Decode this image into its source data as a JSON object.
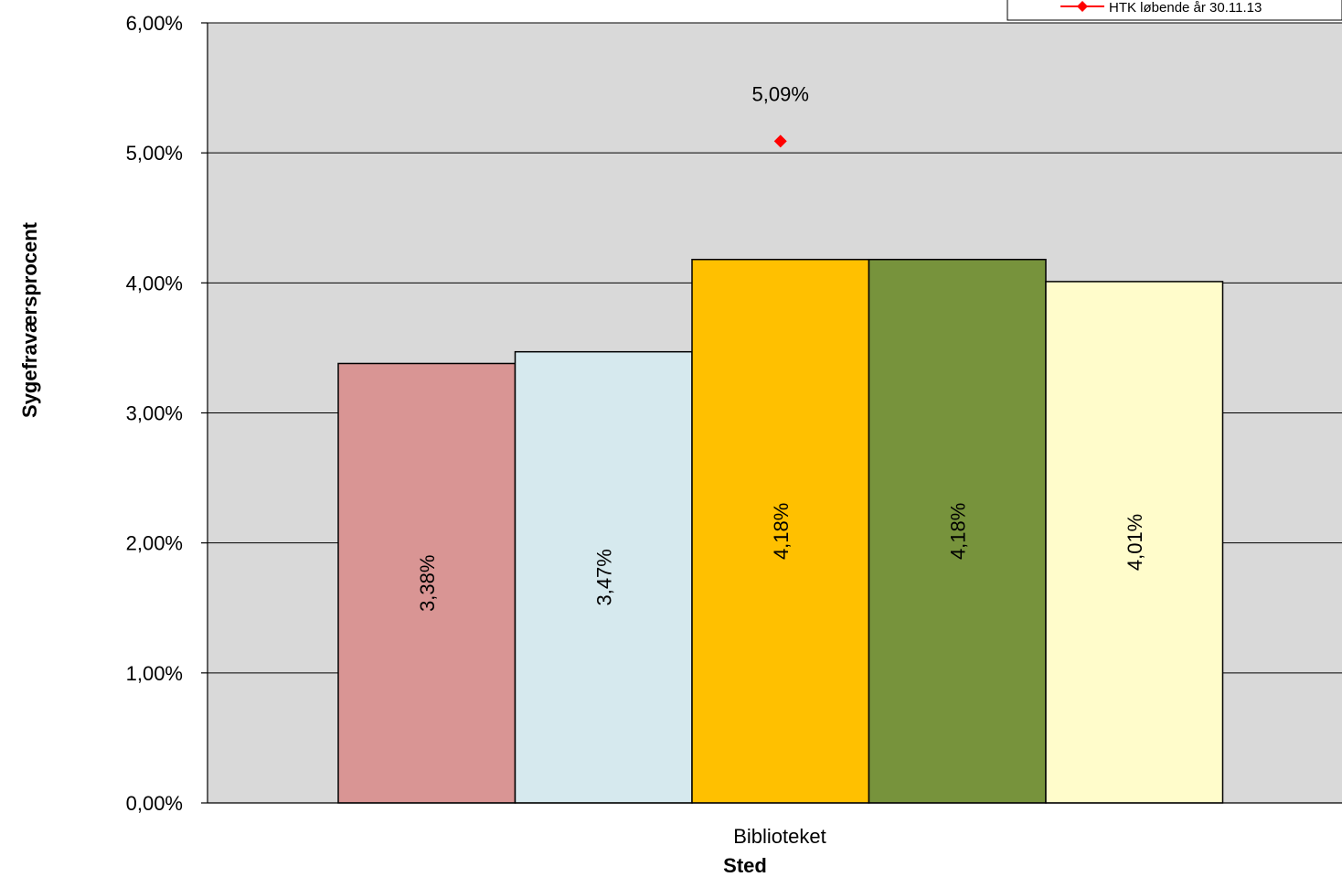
{
  "chart_data": {
    "type": "bar",
    "categories": [
      "Biblioteket"
    ],
    "xlabel": "Sted",
    "ylabel": "Sygefraværsprocent",
    "ylim": [
      0,
      6
    ],
    "yticks": [
      "0,00%",
      "1,00%",
      "2,00%",
      "3,00%",
      "4,00%",
      "5,00%",
      "6,00%"
    ],
    "grid": true,
    "legend_position": "top-right",
    "series": [
      {
        "values": [
          3.38
        ],
        "label": "3,38%",
        "color": "#D99594"
      },
      {
        "values": [
          3.47
        ],
        "label": "3,47%",
        "color": "#D6E9EE"
      },
      {
        "values": [
          4.18
        ],
        "label": "4,18%",
        "color": "#FFC000"
      },
      {
        "values": [
          4.18
        ],
        "label": "4,18%",
        "color": "#77933C"
      },
      {
        "values": [
          4.01
        ],
        "label": "4,01%",
        "color": "#FFFCCB"
      }
    ],
    "points": [
      {
        "name": "HTK løbende år 30.11.13",
        "values": [
          5.09
        ],
        "label": "5,09%",
        "color": "#FF0000",
        "marker": "diamond"
      }
    ],
    "plot_background": "#D9D9D9"
  }
}
